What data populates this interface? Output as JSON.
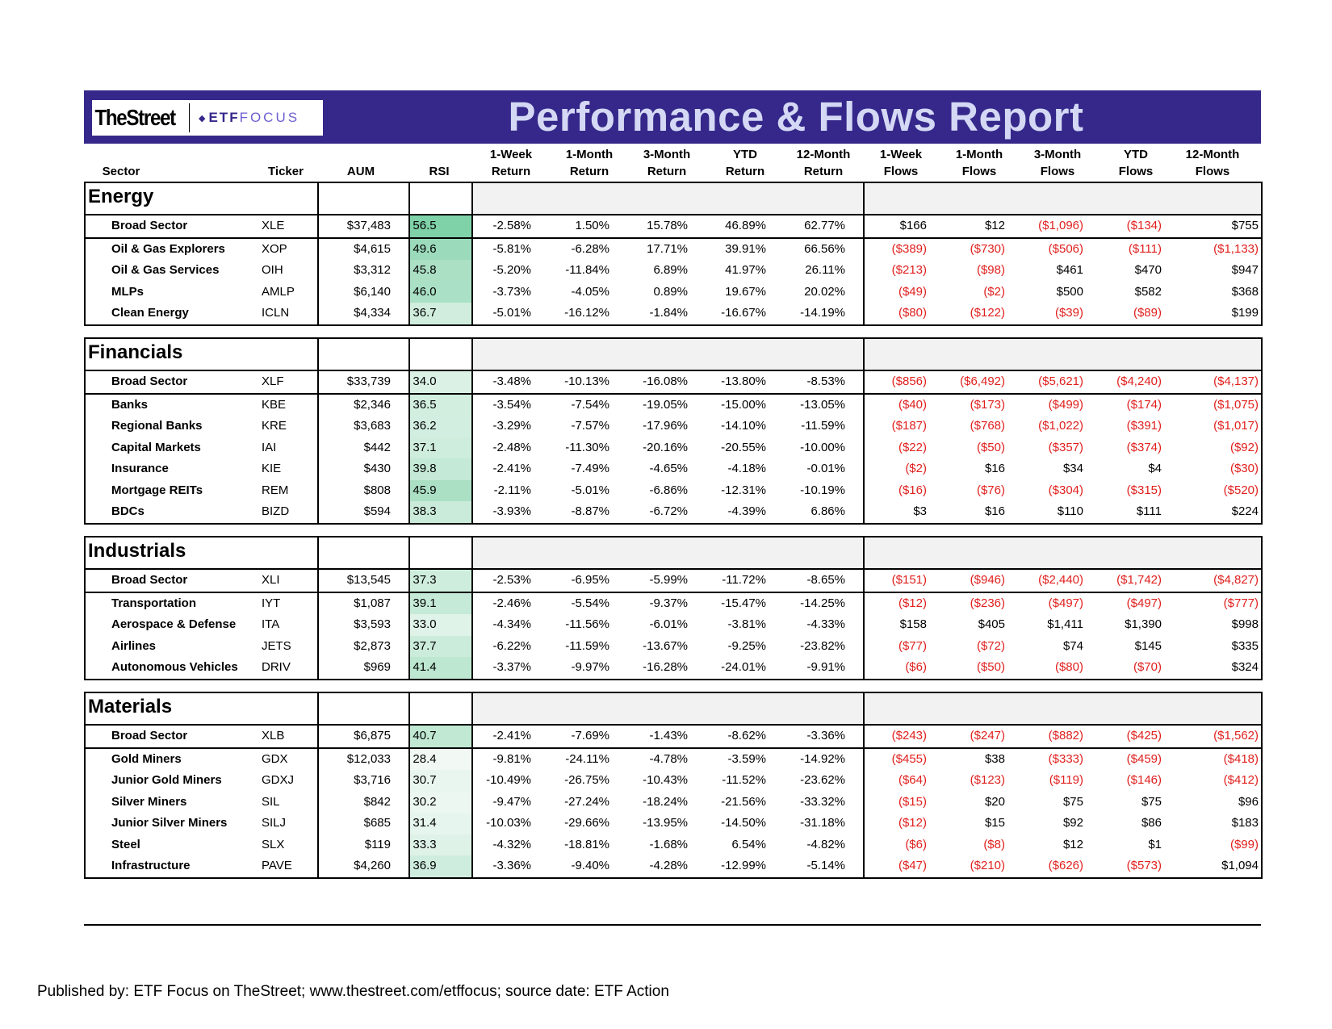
{
  "header": {
    "logo_thestreet": "TheStreet",
    "logo_etf": "ETF",
    "logo_focus": "FOCUS",
    "title": "Performance & Flows Report"
  },
  "columns": {
    "sector": "Sector",
    "ticker": "Ticker",
    "aum": "AUM",
    "rsi": "RSI",
    "ret_1w": [
      "1-Week",
      "Return"
    ],
    "ret_1m": [
      "1-Month",
      "Return"
    ],
    "ret_3m": [
      "3-Month",
      "Return"
    ],
    "ret_ytd": [
      "YTD",
      "Return"
    ],
    "ret_12m": [
      "12-Month",
      "Return"
    ],
    "flow_1w": [
      "1-Week",
      "Flows"
    ],
    "flow_1m": [
      "1-Month",
      "Flows"
    ],
    "flow_3m": [
      "3-Month",
      "Flows"
    ],
    "flow_ytd": [
      "YTD",
      "Flows"
    ],
    "flow_12m": [
      "12-Month",
      "Flows"
    ]
  },
  "colors": {
    "header_bar": "#35288a",
    "title_text": "#d4d8f4",
    "negative": "#e0201e",
    "rsi_high": "#7fd1a8",
    "rsi_low": "#f4faf6"
  },
  "sections": [
    {
      "title": "Energy",
      "rows": [
        [
          "Broad Sector",
          "XLE",
          "$37,483",
          "56.5",
          "-2.58%",
          "1.50%",
          "15.78%",
          "46.89%",
          "62.77%",
          "$166",
          "$12",
          "($1,096)",
          "($134)",
          "$755"
        ],
        [
          "Oil & Gas Explorers",
          "XOP",
          "$4,615",
          "49.6",
          "-5.81%",
          "-6.28%",
          "17.71%",
          "39.91%",
          "66.56%",
          "($389)",
          "($730)",
          "($506)",
          "($111)",
          "($1,133)"
        ],
        [
          "Oil & Gas Services",
          "OIH",
          "$3,312",
          "45.8",
          "-5.20%",
          "-11.84%",
          "6.89%",
          "41.97%",
          "26.11%",
          "($213)",
          "($98)",
          "$461",
          "$470",
          "$947"
        ],
        [
          "MLPs",
          "AMLP",
          "$6,140",
          "46.0",
          "-3.73%",
          "-4.05%",
          "0.89%",
          "19.67%",
          "20.02%",
          "($49)",
          "($2)",
          "$500",
          "$582",
          "$368"
        ],
        [
          "Clean Energy",
          "ICLN",
          "$4,334",
          "36.7",
          "-5.01%",
          "-16.12%",
          "-1.84%",
          "-16.67%",
          "-14.19%",
          "($80)",
          "($122)",
          "($39)",
          "($89)",
          "$199"
        ]
      ]
    },
    {
      "title": "Financials",
      "rows": [
        [
          "Broad Sector",
          "XLF",
          "$33,739",
          "34.0",
          "-3.48%",
          "-10.13%",
          "-16.08%",
          "-13.80%",
          "-8.53%",
          "($856)",
          "($6,492)",
          "($5,621)",
          "($4,240)",
          "($4,137)"
        ],
        [
          "Banks",
          "KBE",
          "$2,346",
          "36.5",
          "-3.54%",
          "-7.54%",
          "-19.05%",
          "-15.00%",
          "-13.05%",
          "($40)",
          "($173)",
          "($499)",
          "($174)",
          "($1,075)"
        ],
        [
          "Regional Banks",
          "KRE",
          "$3,683",
          "36.2",
          "-3.29%",
          "-7.57%",
          "-17.96%",
          "-14.10%",
          "-11.59%",
          "($187)",
          "($768)",
          "($1,022)",
          "($391)",
          "($1,017)"
        ],
        [
          "Capital Markets",
          "IAI",
          "$442",
          "37.1",
          "-2.48%",
          "-11.30%",
          "-20.16%",
          "-20.55%",
          "-10.00%",
          "($22)",
          "($50)",
          "($357)",
          "($374)",
          "($92)"
        ],
        [
          "Insurance",
          "KIE",
          "$430",
          "39.8",
          "-2.41%",
          "-7.49%",
          "-4.65%",
          "-4.18%",
          "-0.01%",
          "($2)",
          "$16",
          "$34",
          "$4",
          "($30)"
        ],
        [
          "Mortgage REITs",
          "REM",
          "$808",
          "45.9",
          "-2.11%",
          "-5.01%",
          "-6.86%",
          "-12.31%",
          "-10.19%",
          "($16)",
          "($76)",
          "($304)",
          "($315)",
          "($520)"
        ],
        [
          "BDCs",
          "BIZD",
          "$594",
          "38.3",
          "-3.93%",
          "-8.87%",
          "-6.72%",
          "-4.39%",
          "6.86%",
          "$3",
          "$16",
          "$110",
          "$111",
          "$224"
        ]
      ]
    },
    {
      "title": "Industrials",
      "rows": [
        [
          "Broad Sector",
          "XLI",
          "$13,545",
          "37.3",
          "-2.53%",
          "-6.95%",
          "-5.99%",
          "-11.72%",
          "-8.65%",
          "($151)",
          "($946)",
          "($2,440)",
          "($1,742)",
          "($4,827)"
        ],
        [
          "Transportation",
          "IYT",
          "$1,087",
          "39.1",
          "-2.46%",
          "-5.54%",
          "-9.37%",
          "-15.47%",
          "-14.25%",
          "($12)",
          "($236)",
          "($497)",
          "($497)",
          "($777)"
        ],
        [
          "Aerospace & Defense",
          "ITA",
          "$3,593",
          "33.0",
          "-4.34%",
          "-11.56%",
          "-6.01%",
          "-3.81%",
          "-4.33%",
          "$158",
          "$405",
          "$1,411",
          "$1,390",
          "$998"
        ],
        [
          "Airlines",
          "JETS",
          "$2,873",
          "37.7",
          "-6.22%",
          "-11.59%",
          "-13.67%",
          "-9.25%",
          "-23.82%",
          "($77)",
          "($72)",
          "$74",
          "$145",
          "$335"
        ],
        [
          "Autonomous Vehicles",
          "DRIV",
          "$969",
          "41.4",
          "-3.37%",
          "-9.97%",
          "-16.28%",
          "-24.01%",
          "-9.91%",
          "($6)",
          "($50)",
          "($80)",
          "($70)",
          "$324"
        ]
      ]
    },
    {
      "title": "Materials",
      "rows": [
        [
          "Broad Sector",
          "XLB",
          "$6,875",
          "40.7",
          "-2.41%",
          "-7.69%",
          "-1.43%",
          "-8.62%",
          "-3.36%",
          "($243)",
          "($247)",
          "($882)",
          "($425)",
          "($1,562)"
        ],
        [
          "Gold Miners",
          "GDX",
          "$12,033",
          "28.4",
          "-9.81%",
          "-24.11%",
          "-4.78%",
          "-3.59%",
          "-14.92%",
          "($455)",
          "$38",
          "($333)",
          "($459)",
          "($418)"
        ],
        [
          "Junior Gold Miners",
          "GDXJ",
          "$3,716",
          "30.7",
          "-10.49%",
          "-26.75%",
          "-10.43%",
          "-11.52%",
          "-23.62%",
          "($64)",
          "($123)",
          "($119)",
          "($146)",
          "($412)"
        ],
        [
          "Silver Miners",
          "SIL",
          "$842",
          "30.2",
          "-9.47%",
          "-27.24%",
          "-18.24%",
          "-21.56%",
          "-33.32%",
          "($15)",
          "$20",
          "$75",
          "$75",
          "$96"
        ],
        [
          "Junior Silver Miners",
          "SILJ",
          "$685",
          "31.4",
          "-10.03%",
          "-29.66%",
          "-13.95%",
          "-14.50%",
          "-31.18%",
          "($12)",
          "$15",
          "$92",
          "$86",
          "$183"
        ],
        [
          "Steel",
          "SLX",
          "$119",
          "33.3",
          "-4.32%",
          "-18.81%",
          "-1.68%",
          "6.54%",
          "-4.82%",
          "($6)",
          "($8)",
          "$12",
          "$1",
          "($99)"
        ],
        [
          "Infrastructure",
          "PAVE",
          "$4,260",
          "36.9",
          "-3.36%",
          "-9.40%",
          "-4.28%",
          "-12.99%",
          "-5.14%",
          "($47)",
          "($210)",
          "($626)",
          "($573)",
          "$1,094"
        ]
      ]
    }
  ],
  "footer": "Published by: ETF Focus on TheStreet; www.thestreet.com/etffocus; source date: ETF Action"
}
